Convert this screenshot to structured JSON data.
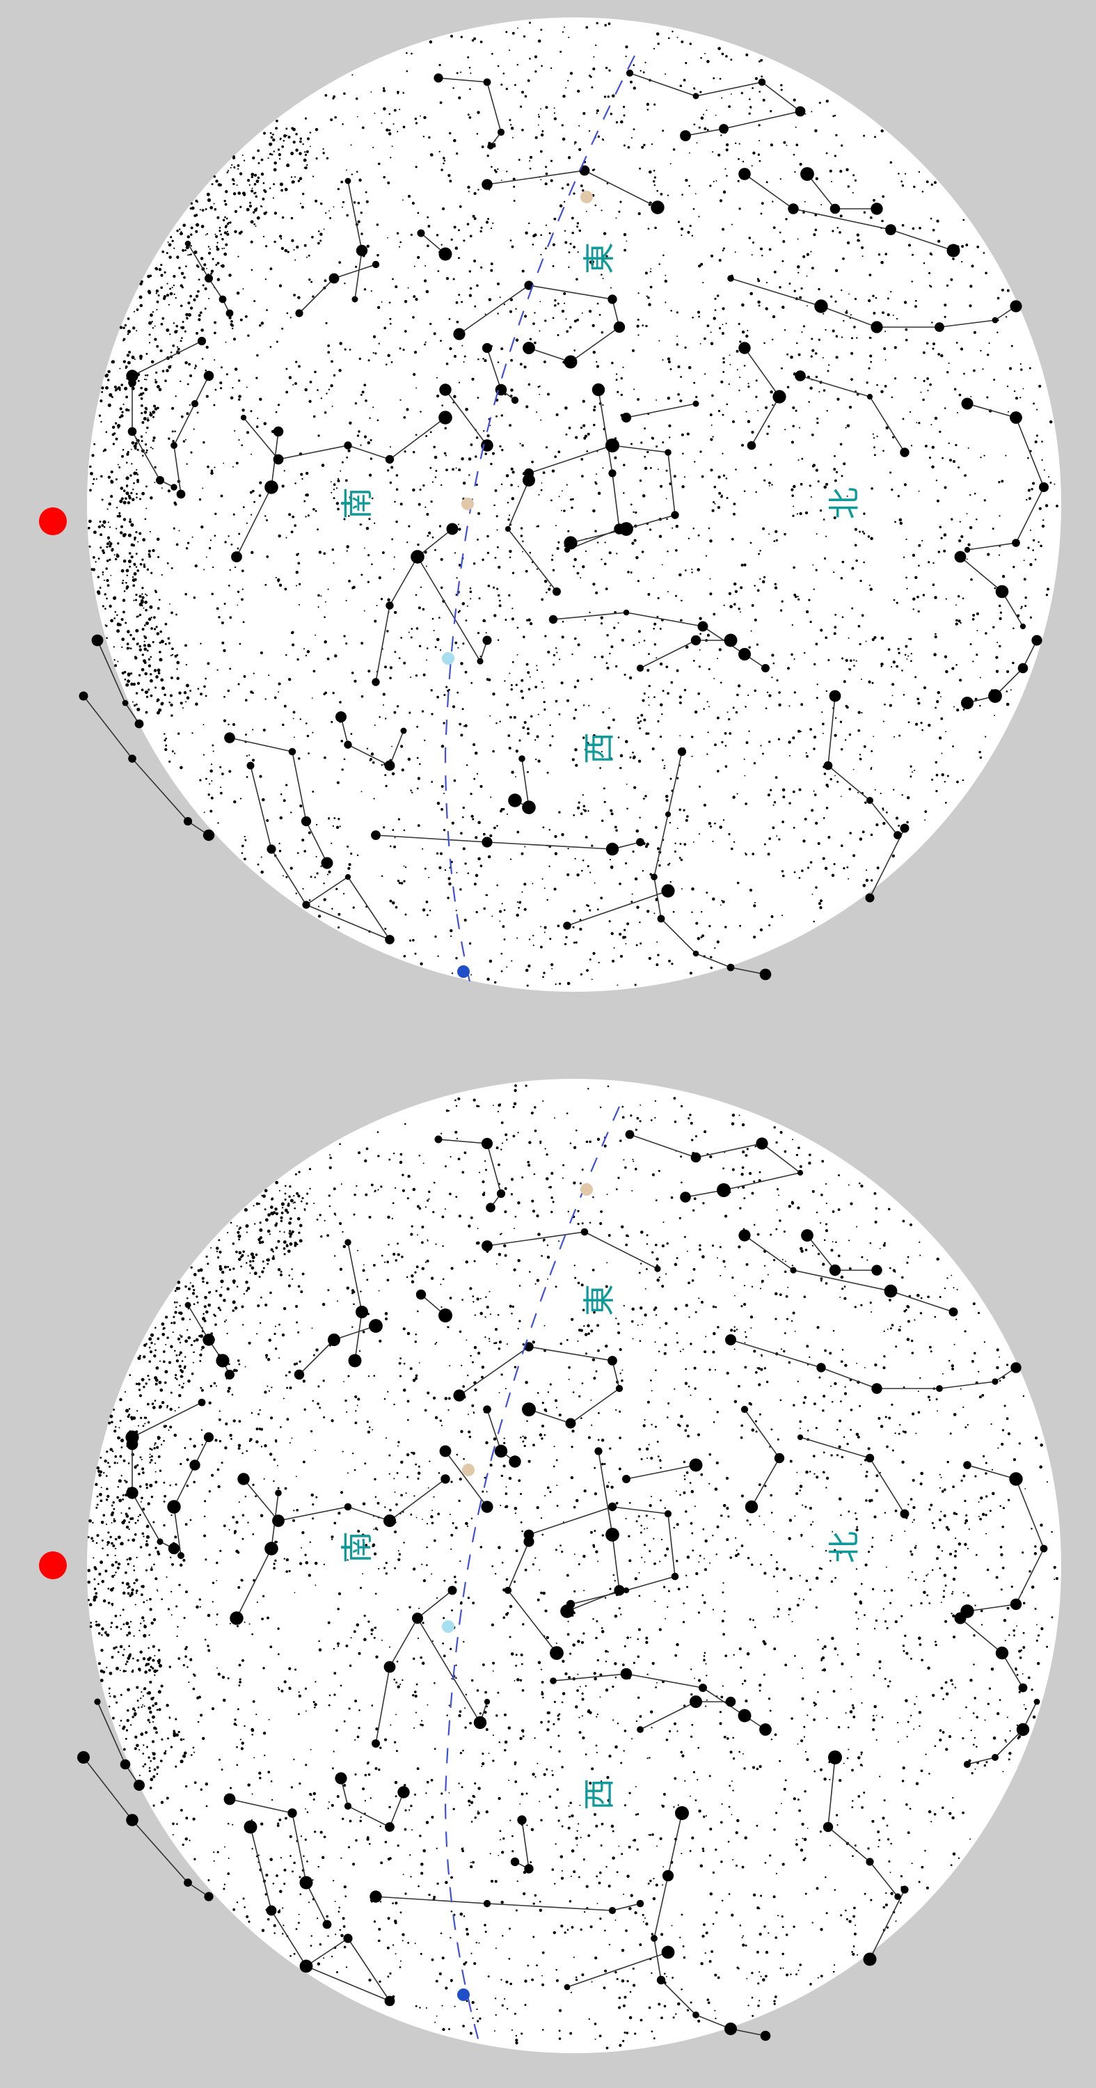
{
  "colors": {
    "background": "#cccccc",
    "sky": "#ffffff",
    "star": "#000000",
    "label": "#0f9a9a",
    "marker": "#ff0000",
    "ecliptic": "#3f4fe0",
    "planet_tan": "#e0c8a8",
    "planet_lightblue": "#a8dff0",
    "planet_blue": "#1f4fc8"
  },
  "charts": [
    {
      "directions": {
        "east": "東",
        "south": "南",
        "north": "北",
        "west": "西"
      }
    },
    {
      "directions": {
        "east": "東",
        "south": "南",
        "north": "北",
        "west": "西"
      }
    }
  ]
}
